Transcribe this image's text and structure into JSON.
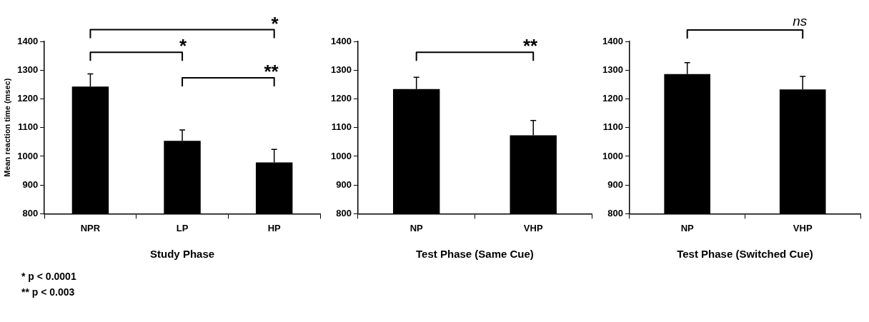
{
  "chart_data": [
    {
      "type": "bar",
      "xlabel": "Study Phase",
      "ylabel": "Mean reaction time (msec)",
      "categories": [
        "NPR",
        "LP",
        "HP"
      ],
      "values": [
        1243,
        1054,
        979
      ],
      "errors": [
        44,
        38,
        45
      ],
      "color": "#000000",
      "ylim": [
        800,
        1400
      ],
      "yticks": [
        800,
        900,
        1000,
        1100,
        1200,
        1300,
        1400
      ],
      "grid": false,
      "annotations": [
        "*",
        "*",
        "**",
        "* p < 0.0001",
        "** p < 0.003"
      ]
    },
    {
      "type": "bar",
      "xlabel": "Test Phase (Same Cue)",
      "categories": [
        "NP",
        "VHP"
      ],
      "values": [
        1234,
        1073
      ],
      "errors": [
        41,
        52
      ],
      "color": "#000000",
      "ylim": [
        800,
        1400
      ],
      "yticks": [
        800,
        900,
        1000,
        1100,
        1200,
        1300,
        1400
      ],
      "grid": false,
      "annotations": [
        "**"
      ]
    },
    {
      "type": "bar",
      "xlabel": "Test Phase (Switched Cue)",
      "categories": [
        "NP",
        "VHP"
      ],
      "values": [
        1286,
        1233
      ],
      "errors": [
        40,
        45
      ],
      "color": "#000000",
      "ylim": [
        800,
        1400
      ],
      "yticks": [
        800,
        900,
        1000,
        1100,
        1200,
        1300,
        1400
      ],
      "grid": false,
      "annotations": [
        "ns"
      ]
    }
  ]
}
